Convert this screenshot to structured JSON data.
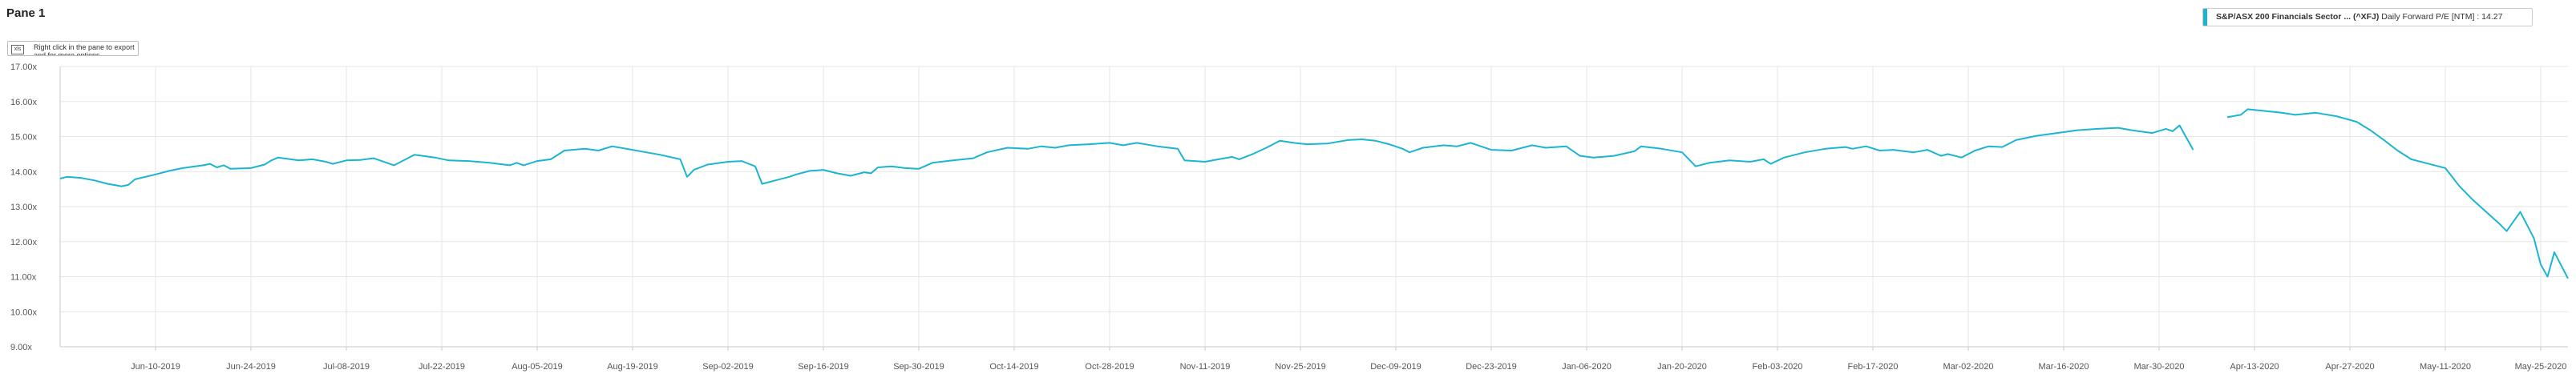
{
  "pane": {
    "title": "Pane 1",
    "hint": "Right click in the pane to export and for more options",
    "hint_icon": "xls"
  },
  "legend": {
    "series_name": "S&P/ASX 200 Financials Sector ... (^XFJ)",
    "series_desc": "Daily Forward P/E [NTM] : 14.27",
    "color": "#1cb5d1"
  },
  "chart_data": {
    "type": "line",
    "title": "",
    "xlabel": "",
    "ylabel": "",
    "grid": true,
    "legend_position": "top-right",
    "ylim": [
      9,
      17
    ],
    "xlim": [
      "2019-05-27",
      "2020-05-29"
    ],
    "y_ticks": [
      "9.00x",
      "10.00x",
      "11.00x",
      "12.00x",
      "13.00x",
      "14.00x",
      "15.00x",
      "16.00x",
      "17.00x"
    ],
    "x_ticks": [
      {
        "date": "2019-06-10",
        "label": "Jun-10-2019"
      },
      {
        "date": "2019-06-24",
        "label": "Jun-24-2019"
      },
      {
        "date": "2019-07-08",
        "label": "Jul-08-2019"
      },
      {
        "date": "2019-07-22",
        "label": "Jul-22-2019"
      },
      {
        "date": "2019-08-05",
        "label": "Aug-05-2019"
      },
      {
        "date": "2019-08-19",
        "label": "Aug-19-2019"
      },
      {
        "date": "2019-09-02",
        "label": "Sep-02-2019"
      },
      {
        "date": "2019-09-16",
        "label": "Sep-16-2019"
      },
      {
        "date": "2019-09-30",
        "label": "Sep-30-2019"
      },
      {
        "date": "2019-10-14",
        "label": "Oct-14-2019"
      },
      {
        "date": "2019-10-28",
        "label": "Oct-28-2019"
      },
      {
        "date": "2019-11-11",
        "label": "Nov-11-2019"
      },
      {
        "date": "2019-11-25",
        "label": "Nov-25-2019"
      },
      {
        "date": "2019-12-09",
        "label": "Dec-09-2019"
      },
      {
        "date": "2019-12-23",
        "label": "Dec-23-2019"
      },
      {
        "date": "2020-01-06",
        "label": "Jan-06-2020"
      },
      {
        "date": "2020-01-20",
        "label": "Jan-20-2020"
      },
      {
        "date": "2020-02-03",
        "label": "Feb-03-2020"
      },
      {
        "date": "2020-02-17",
        "label": "Feb-17-2020"
      },
      {
        "date": "2020-03-02",
        "label": "Mar-02-2020"
      },
      {
        "date": "2020-03-16",
        "label": "Mar-16-2020"
      },
      {
        "date": "2020-03-30",
        "label": "Mar-30-2020"
      },
      {
        "date": "2020-04-13",
        "label": "Apr-13-2020"
      },
      {
        "date": "2020-04-27",
        "label": "Apr-27-2020"
      },
      {
        "date": "2020-05-11",
        "label": "May-11-2020"
      },
      {
        "date": "2020-05-25",
        "label": "May-25-2020"
      }
    ],
    "series": [
      {
        "name": "S&P/ASX 200 Financials Sector ... (^XFJ)",
        "color": "#1cb5d1",
        "segments": [
          [
            [
              "2019-05-27",
              13.8
            ],
            [
              "2019-05-28",
              13.85
            ],
            [
              "2019-05-30",
              13.82
            ],
            [
              "2019-06-01",
              13.75
            ],
            [
              "2019-06-03",
              13.65
            ],
            [
              "2019-06-05",
              13.58
            ],
            [
              "2019-06-06",
              13.62
            ],
            [
              "2019-06-07",
              13.78
            ],
            [
              "2019-06-10",
              13.92
            ],
            [
              "2019-06-12",
              14.02
            ],
            [
              "2019-06-14",
              14.1
            ],
            [
              "2019-06-17",
              14.18
            ],
            [
              "2019-06-18",
              14.22
            ],
            [
              "2019-06-19",
              14.12
            ],
            [
              "2019-06-20",
              14.18
            ],
            [
              "2019-06-21",
              14.08
            ],
            [
              "2019-06-24",
              14.1
            ],
            [
              "2019-06-26",
              14.2
            ],
            [
              "2019-06-27",
              14.32
            ],
            [
              "2019-06-28",
              14.4
            ],
            [
              "2019-07-01",
              14.32
            ],
            [
              "2019-07-03",
              14.35
            ],
            [
              "2019-07-05",
              14.28
            ],
            [
              "2019-07-06",
              14.22
            ],
            [
              "2019-07-08",
              14.32
            ],
            [
              "2019-07-10",
              14.33
            ],
            [
              "2019-07-12",
              14.38
            ],
            [
              "2019-07-15",
              14.18
            ],
            [
              "2019-07-16",
              14.28
            ],
            [
              "2019-07-17",
              14.38
            ],
            [
              "2019-07-18",
              14.48
            ],
            [
              "2019-07-21",
              14.4
            ],
            [
              "2019-07-23",
              14.32
            ],
            [
              "2019-07-26",
              14.3
            ],
            [
              "2019-07-29",
              14.25
            ],
            [
              "2019-08-01",
              14.18
            ],
            [
              "2019-08-02",
              14.25
            ],
            [
              "2019-08-03",
              14.18
            ],
            [
              "2019-08-05",
              14.3
            ],
            [
              "2019-08-07",
              14.35
            ],
            [
              "2019-08-09",
              14.6
            ],
            [
              "2019-08-12",
              14.65
            ],
            [
              "2019-08-14",
              14.6
            ],
            [
              "2019-08-16",
              14.72
            ],
            [
              "2019-08-19",
              14.62
            ],
            [
              "2019-08-21",
              14.55
            ],
            [
              "2019-08-23",
              14.48
            ],
            [
              "2019-08-26",
              14.35
            ],
            [
              "2019-08-27",
              13.85
            ],
            [
              "2019-08-28",
              14.05
            ],
            [
              "2019-08-30",
              14.2
            ],
            [
              "2019-09-02",
              14.28
            ],
            [
              "2019-09-04",
              14.3
            ],
            [
              "2019-09-06",
              14.15
            ],
            [
              "2019-09-07",
              13.65
            ],
            [
              "2019-09-09",
              13.75
            ],
            [
              "2019-09-11",
              13.85
            ],
            [
              "2019-09-12",
              13.92
            ],
            [
              "2019-09-14",
              14.02
            ],
            [
              "2019-09-16",
              14.05
            ],
            [
              "2019-09-18",
              13.95
            ],
            [
              "2019-09-20",
              13.88
            ],
            [
              "2019-09-22",
              13.98
            ],
            [
              "2019-09-23",
              13.95
            ],
            [
              "2019-09-24",
              14.12
            ],
            [
              "2019-09-26",
              14.15
            ],
            [
              "2019-09-28",
              14.1
            ],
            [
              "2019-09-30",
              14.08
            ],
            [
              "2019-10-02",
              14.25
            ],
            [
              "2019-10-05",
              14.32
            ],
            [
              "2019-10-08",
              14.38
            ],
            [
              "2019-10-10",
              14.55
            ],
            [
              "2019-10-13",
              14.68
            ],
            [
              "2019-10-16",
              14.65
            ],
            [
              "2019-10-18",
              14.72
            ],
            [
              "2019-10-20",
              14.68
            ],
            [
              "2019-10-22",
              14.75
            ],
            [
              "2019-10-25",
              14.78
            ],
            [
              "2019-10-28",
              14.82
            ],
            [
              "2019-10-30",
              14.75
            ],
            [
              "2019-11-01",
              14.82
            ],
            [
              "2019-11-04",
              14.72
            ],
            [
              "2019-11-07",
              14.65
            ],
            [
              "2019-11-08",
              14.32
            ],
            [
              "2019-11-11",
              14.28
            ],
            [
              "2019-11-13",
              14.35
            ],
            [
              "2019-11-15",
              14.42
            ],
            [
              "2019-11-16",
              14.35
            ],
            [
              "2019-11-18",
              14.5
            ],
            [
              "2019-11-20",
              14.68
            ],
            [
              "2019-11-22",
              14.88
            ],
            [
              "2019-11-24",
              14.82
            ],
            [
              "2019-11-26",
              14.78
            ],
            [
              "2019-11-29",
              14.8
            ],
            [
              "2019-12-02",
              14.9
            ],
            [
              "2019-12-04",
              14.92
            ],
            [
              "2019-12-06",
              14.88
            ],
            [
              "2019-12-08",
              14.78
            ],
            [
              "2019-12-10",
              14.65
            ],
            [
              "2019-12-11",
              14.55
            ],
            [
              "2019-12-13",
              14.68
            ],
            [
              "2019-12-16",
              14.75
            ],
            [
              "2019-12-18",
              14.72
            ],
            [
              "2019-12-20",
              14.82
            ],
            [
              "2019-12-23",
              14.62
            ],
            [
              "2019-12-26",
              14.6
            ],
            [
              "2019-12-29",
              14.75
            ],
            [
              "2019-12-31",
              14.68
            ],
            [
              "2020-01-03",
              14.72
            ],
            [
              "2020-01-05",
              14.45
            ],
            [
              "2020-01-07",
              14.4
            ],
            [
              "2020-01-10",
              14.45
            ],
            [
              "2020-01-13",
              14.58
            ],
            [
              "2020-01-14",
              14.72
            ],
            [
              "2020-01-17",
              14.65
            ],
            [
              "2020-01-20",
              14.55
            ],
            [
              "2020-01-22",
              14.15
            ],
            [
              "2020-01-24",
              14.25
            ],
            [
              "2020-01-27",
              14.32
            ],
            [
              "2020-01-30",
              14.28
            ],
            [
              "2020-02-01",
              14.35
            ],
            [
              "2020-02-02",
              14.22
            ],
            [
              "2020-02-04",
              14.4
            ],
            [
              "2020-02-07",
              14.55
            ],
            [
              "2020-02-10",
              14.65
            ],
            [
              "2020-02-13",
              14.7
            ],
            [
              "2020-02-14",
              14.65
            ],
            [
              "2020-02-16",
              14.72
            ],
            [
              "2020-02-18",
              14.6
            ],
            [
              "2020-02-20",
              14.62
            ],
            [
              "2020-02-23",
              14.55
            ],
            [
              "2020-02-25",
              14.62
            ],
            [
              "2020-02-27",
              14.45
            ],
            [
              "2020-02-28",
              14.5
            ],
            [
              "2020-03-01",
              14.4
            ],
            [
              "2020-03-03",
              14.6
            ],
            [
              "2020-03-05",
              14.72
            ],
            [
              "2020-03-07",
              14.7
            ],
            [
              "2020-03-09",
              14.9
            ],
            [
              "2020-03-12",
              15.02
            ],
            [
              "2020-03-15",
              15.1
            ],
            [
              "2020-03-18",
              15.18
            ],
            [
              "2020-03-21",
              15.22
            ],
            [
              "2020-03-24",
              15.25
            ],
            [
              "2020-03-26",
              15.18
            ],
            [
              "2020-03-29",
              15.1
            ],
            [
              "2020-03-31",
              15.22
            ],
            [
              "2020-04-01",
              15.15
            ],
            [
              "2020-04-02",
              15.32
            ],
            [
              "2020-04-04",
              14.62
            ]
          ],
          [
            [
              "2020-04-09",
              15.55
            ],
            [
              "2020-04-11",
              15.62
            ],
            [
              "2020-04-12",
              15.78
            ],
            [
              "2020-04-15",
              15.72
            ],
            [
              "2020-04-17",
              15.68
            ],
            [
              "2020-04-19",
              15.62
            ],
            [
              "2020-04-22",
              15.68
            ],
            [
              "2020-04-25",
              15.58
            ],
            [
              "2020-04-28",
              15.42
            ],
            [
              "2020-04-30",
              15.18
            ],
            [
              "2020-05-02",
              14.9
            ],
            [
              "2020-05-04",
              14.6
            ],
            [
              "2020-05-06",
              14.35
            ],
            [
              "2020-05-08",
              14.25
            ],
            [
              "2020-05-11",
              14.1
            ],
            [
              "2020-05-12",
              13.85
            ],
            [
              "2020-05-13",
              13.6
            ],
            [
              "2020-05-15",
              13.2
            ],
            [
              "2020-05-17",
              12.85
            ],
            [
              "2020-05-19",
              12.5
            ],
            [
              "2020-05-20",
              12.3
            ],
            [
              "2020-05-22",
              12.85
            ],
            [
              "2020-05-24",
              12.1
            ],
            [
              "2020-05-25",
              11.35
            ],
            [
              "2020-05-26",
              11.0
            ],
            [
              "2020-05-27",
              11.7
            ],
            [
              "2020-05-29",
              10.95
            ]
          ]
        ]
      }
    ]
  }
}
